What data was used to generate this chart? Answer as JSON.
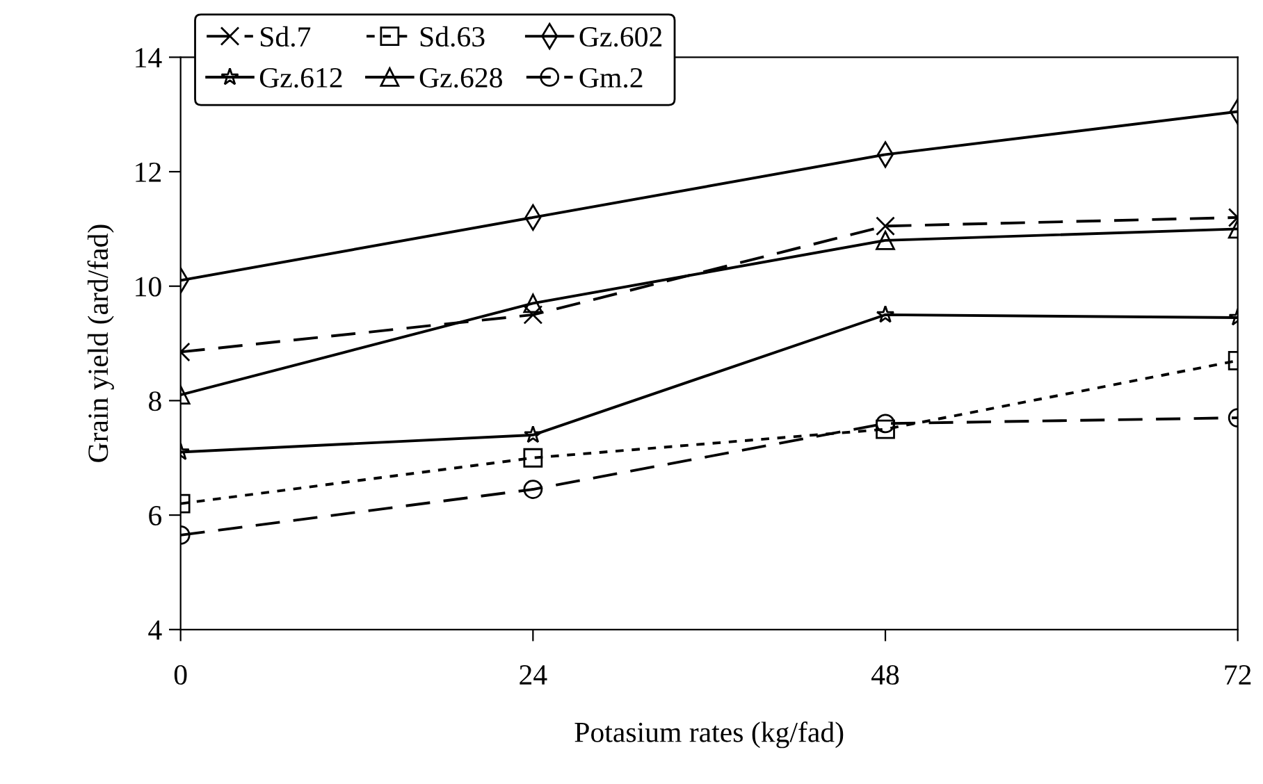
{
  "chart_data": {
    "type": "line",
    "xlabel": "Potasium rates (kg/fad)",
    "ylabel": "Grain yield (ard/fad)",
    "x": [
      0,
      24,
      48,
      72
    ],
    "xlim": [
      0,
      72
    ],
    "xticks": [
      0,
      24,
      48,
      72
    ],
    "ylim": [
      4,
      14
    ],
    "yticks": [
      4,
      6,
      8,
      10,
      12,
      14
    ],
    "grid": false,
    "legend": "top left",
    "series": [
      {
        "name": "Sd.7",
        "color": "#000000",
        "marker": "cross",
        "line_style": "dashed",
        "values": [
          8.85,
          9.5,
          11.05,
          11.2
        ]
      },
      {
        "name": "Sd.63",
        "color": "#000000",
        "marker": "square",
        "line_style": "dotted",
        "values": [
          6.2,
          7.0,
          7.5,
          8.7
        ]
      },
      {
        "name": "Gz.602",
        "color": "#000000",
        "marker": "diamond",
        "line_style": "solid",
        "values": [
          10.1,
          11.2,
          12.3,
          13.05
        ]
      },
      {
        "name": "Gz.612",
        "color": "#000000",
        "marker": "star",
        "line_style": "solid",
        "values": [
          7.1,
          7.4,
          9.5,
          9.45
        ]
      },
      {
        "name": "Gz.628",
        "color": "#000000",
        "marker": "triangle",
        "line_style": "solid",
        "values": [
          8.1,
          9.7,
          10.8,
          11.0
        ]
      },
      {
        "name": "Gm.2",
        "color": "#000000",
        "marker": "circle",
        "line_style": "dashed",
        "values": [
          5.65,
          6.45,
          7.6,
          7.7
        ]
      }
    ]
  }
}
